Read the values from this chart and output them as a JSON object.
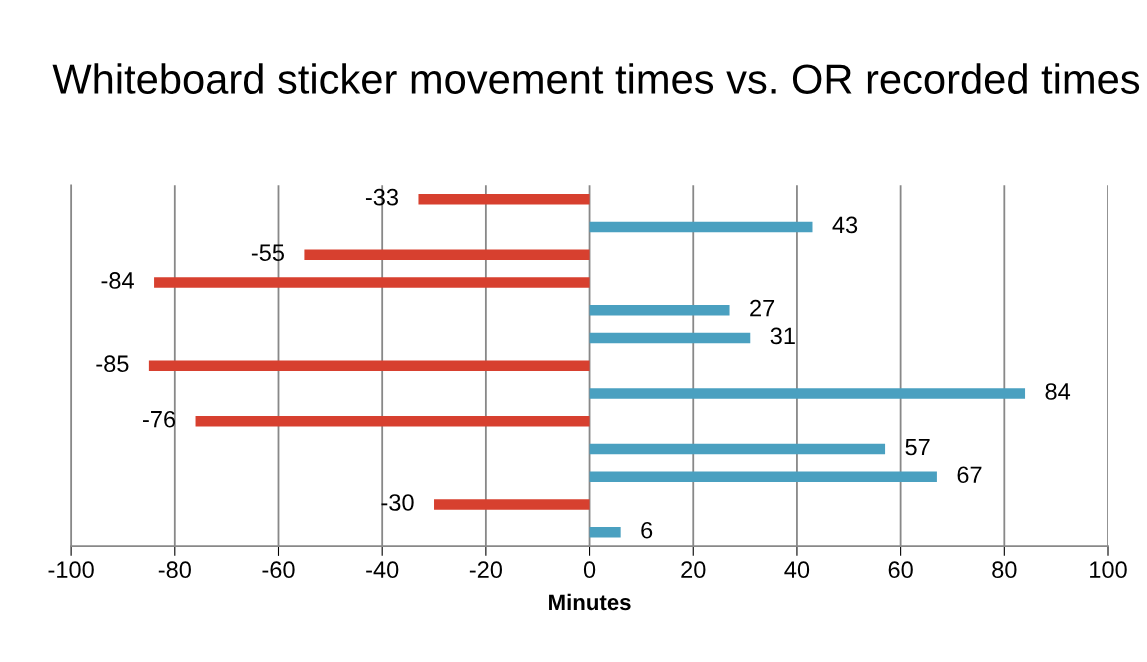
{
  "chart_data": {
    "type": "bar",
    "orientation": "horizontal",
    "title": "Whiteboard sticker movement times vs. OR recorded times",
    "xlabel": "Minutes",
    "categories": [
      null,
      null,
      null,
      null,
      null,
      null,
      null,
      null,
      null,
      null,
      null,
      null,
      null
    ],
    "values": [
      -33,
      43,
      -55,
      -84,
      27,
      31,
      -85,
      84,
      -76,
      57,
      67,
      -30,
      6
    ],
    "colors": [
      "#d7402f",
      "#4aa0c0",
      "#d7402f",
      "#d7402f",
      "#4aa0c0",
      "#4aa0c0",
      "#d7402f",
      "#4aa0c0",
      "#d7402f",
      "#4aa0c0",
      "#4aa0c0",
      "#d7402f",
      "#4aa0c0"
    ],
    "xlim": [
      -100,
      100
    ],
    "xticks": [
      -100,
      -80,
      -60,
      -40,
      -20,
      0,
      20,
      40,
      60,
      80,
      100
    ],
    "grid": "x",
    "data_labels": true,
    "tick_labels": "x"
  }
}
